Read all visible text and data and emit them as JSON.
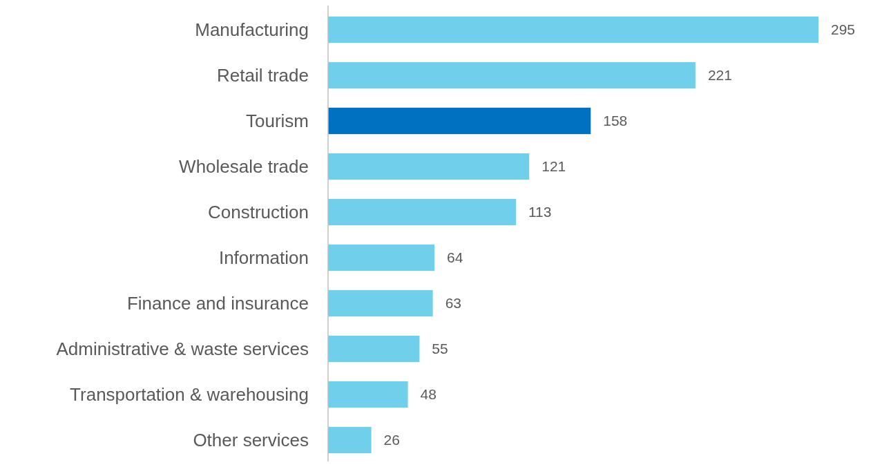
{
  "chart_data": {
    "type": "bar",
    "orientation": "horizontal",
    "categories": [
      "Manufacturing",
      "Retail trade",
      "Tourism",
      "Wholesale trade",
      "Construction",
      "Information",
      "Finance and insurance",
      "Administrative & waste services",
      "Transportation & warehousing",
      "Other services"
    ],
    "values": [
      295,
      221,
      158,
      121,
      113,
      64,
      63,
      55,
      48,
      26
    ],
    "colors": [
      "#70cfea",
      "#70cfea",
      "#0070c0",
      "#70cfea",
      "#70cfea",
      "#70cfea",
      "#70cfea",
      "#70cfea",
      "#70cfea",
      "#70cfea"
    ],
    "data_labels": true
  }
}
